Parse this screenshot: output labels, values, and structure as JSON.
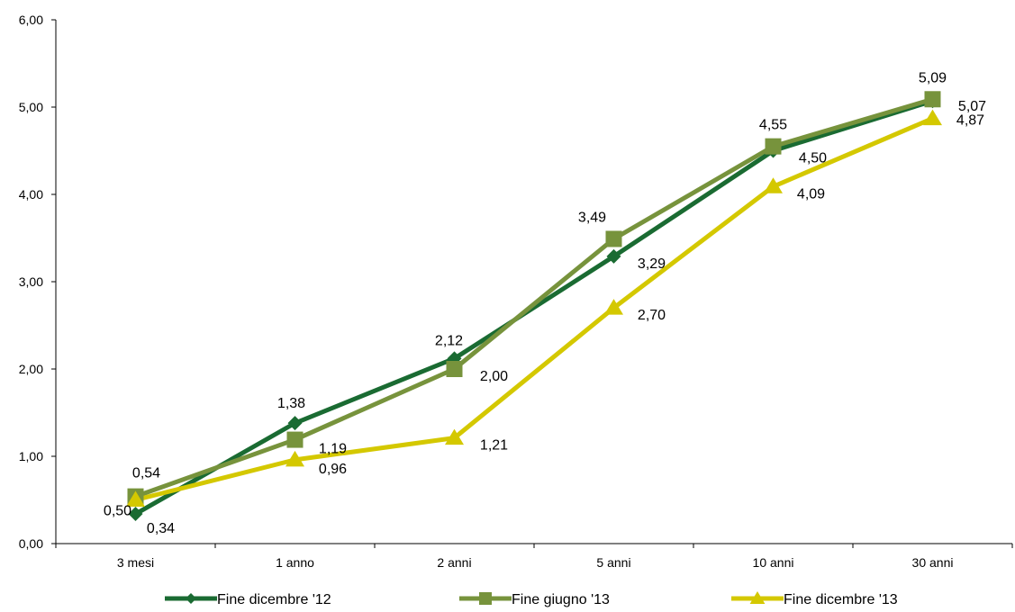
{
  "chart_data": {
    "type": "line",
    "categories": [
      "3 mesi",
      "1 anno",
      "2 anni",
      "5 anni",
      "10 anni",
      "30 anni"
    ],
    "ylim": [
      0,
      6
    ],
    "yticks": [
      "0,00",
      "1,00",
      "2,00",
      "3,00",
      "4,00",
      "5,00",
      "6,00"
    ],
    "legend_position": "bottom",
    "grid": false,
    "series": [
      {
        "name": "Fine dicembre '12",
        "color": "#1a6b32",
        "marker": "diamond",
        "values": [
          0.34,
          1.38,
          2.12,
          3.29,
          4.5,
          5.07
        ],
        "labels": [
          "0,34",
          "1,38",
          "2,12",
          "3,29",
          "4,50",
          "5,07"
        ]
      },
      {
        "name": "Fine giugno '13",
        "color": "#77933c",
        "marker": "square",
        "values": [
          0.54,
          1.19,
          2.0,
          3.49,
          4.55,
          5.09
        ],
        "labels": [
          "0,54",
          "1,19",
          "2,00",
          "3,49",
          "4,55",
          "5,09"
        ]
      },
      {
        "name": "Fine dicembre '13",
        "color": "#d4c800",
        "marker": "triangle",
        "values": [
          0.5,
          0.96,
          1.21,
          2.7,
          4.09,
          4.87
        ],
        "labels": [
          "0,50",
          "0,96",
          "1,21",
          "2,70",
          "4,09",
          "4,87"
        ]
      }
    ]
  }
}
